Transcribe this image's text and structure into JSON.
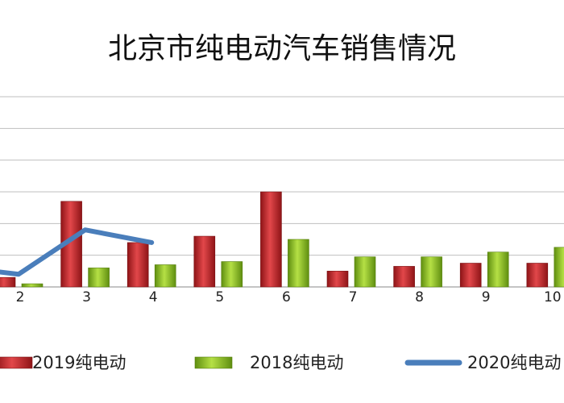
{
  "chart_data": {
    "type": "bar",
    "title": "北京市纯电动汽车销售情况",
    "categories": [
      "2",
      "3",
      "4",
      "5",
      "6",
      "7",
      "8",
      "9",
      "10"
    ],
    "series": [
      {
        "name": "2019纯电动",
        "kind": "bar",
        "color": "#c0262b",
        "values": [
          0.3,
          2.7,
          1.4,
          1.6,
          3.0,
          0.5,
          0.65,
          0.75,
          0.75
        ]
      },
      {
        "name": "2018纯电动",
        "kind": "bar",
        "color": "#8dc21f",
        "values": [
          0.1,
          0.6,
          0.7,
          0.8,
          1.5,
          0.95,
          0.95,
          1.1,
          1.25
        ]
      },
      {
        "name": "2020纯电动",
        "kind": "line",
        "color": "#4a7ebb",
        "values": [
          0.4,
          1.8,
          1.4,
          null,
          null,
          null,
          null,
          null,
          null
        ]
      }
    ],
    "y_range": [
      0,
      6
    ],
    "grid": true,
    "legend_position": "bottom"
  }
}
